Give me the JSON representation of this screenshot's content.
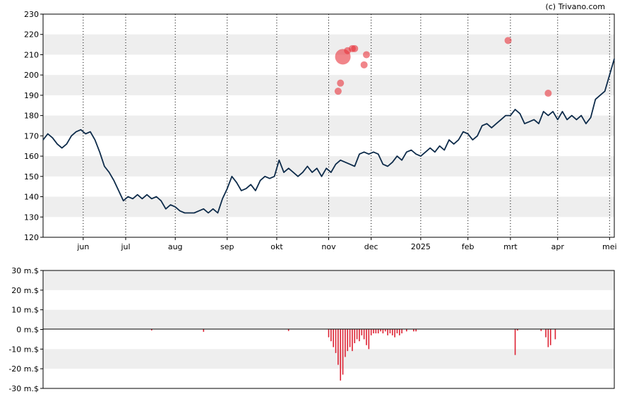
{
  "copyright": "(c) Trivano.com",
  "colors": {
    "line": "#0d2b4a",
    "band": "#eeeeee",
    "marker": "#e8333c",
    "volume": "#dd2233",
    "axis": "#000000"
  },
  "chart_data": [
    {
      "type": "line",
      "title": "",
      "xlabel": "",
      "ylabel": "",
      "ylim": [
        120,
        230
      ],
      "yticks": [
        "120",
        "130",
        "140",
        "150",
        "160",
        "170",
        "180",
        "190",
        "200",
        "210",
        "220",
        "230"
      ],
      "grid": "alternating horizontal bands, dotted vertical lines at month ticks",
      "x_ticks": [
        "jun",
        "jul",
        "aug",
        "sep",
        "okt",
        "nov",
        "dec",
        "2025",
        "feb",
        "mrt",
        "apr",
        "mei"
      ],
      "x_tick_index": [
        17,
        35,
        56,
        78,
        99,
        121,
        139,
        160,
        180,
        198,
        218,
        240
      ],
      "x_count": 243,
      "series": [
        {
          "kp": [
            [
              0,
              168
            ],
            [
              2,
              171
            ],
            [
              4,
              169
            ],
            [
              6,
              166
            ],
            [
              8,
              164
            ],
            [
              10,
              166
            ],
            [
              12,
              170
            ],
            [
              14,
              172
            ],
            [
              16,
              173
            ],
            [
              18,
              171
            ],
            [
              20,
              172
            ],
            [
              22,
              168
            ],
            [
              24,
              162
            ],
            [
              26,
              155
            ],
            [
              28,
              152
            ],
            [
              30,
              148
            ],
            [
              32,
              143
            ],
            [
              34,
              138
            ],
            [
              36,
              140
            ],
            [
              38,
              139
            ],
            [
              40,
              141
            ],
            [
              42,
              139
            ],
            [
              44,
              141
            ],
            [
              46,
              139
            ],
            [
              48,
              140
            ],
            [
              50,
              138
            ],
            [
              52,
              134
            ],
            [
              54,
              136
            ],
            [
              56,
              135
            ],
            [
              58,
              133
            ],
            [
              60,
              132
            ],
            [
              62,
              132
            ],
            [
              64,
              132
            ],
            [
              66,
              133
            ],
            [
              68,
              134
            ],
            [
              70,
              132
            ],
            [
              72,
              134
            ],
            [
              74,
              132
            ],
            [
              76,
              139
            ],
            [
              78,
              144
            ],
            [
              80,
              150
            ],
            [
              82,
              147
            ],
            [
              84,
              143
            ],
            [
              86,
              144
            ],
            [
              88,
              146
            ],
            [
              90,
              143
            ],
            [
              92,
              148
            ],
            [
              94,
              150
            ],
            [
              96,
              149
            ],
            [
              98,
              150
            ],
            [
              100,
              158
            ],
            [
              102,
              152
            ],
            [
              104,
              154
            ],
            [
              106,
              152
            ],
            [
              108,
              150
            ],
            [
              110,
              152
            ],
            [
              112,
              155
            ],
            [
              114,
              152
            ],
            [
              116,
              154
            ],
            [
              118,
              150
            ],
            [
              120,
              154
            ],
            [
              122,
              152
            ],
            [
              124,
              156
            ],
            [
              126,
              158
            ],
            [
              128,
              157
            ],
            [
              130,
              156
            ],
            [
              132,
              155
            ],
            [
              134,
              161
            ],
            [
              136,
              162
            ],
            [
              138,
              161
            ],
            [
              140,
              162
            ],
            [
              142,
              161
            ],
            [
              144,
              156
            ],
            [
              146,
              155
            ],
            [
              148,
              157
            ],
            [
              150,
              160
            ],
            [
              152,
              158
            ],
            [
              154,
              162
            ],
            [
              156,
              163
            ],
            [
              158,
              161
            ],
            [
              160,
              160
            ],
            [
              162,
              162
            ],
            [
              164,
              164
            ],
            [
              166,
              162
            ],
            [
              168,
              165
            ],
            [
              170,
              163
            ],
            [
              172,
              168
            ],
            [
              174,
              166
            ],
            [
              176,
              168
            ],
            [
              178,
              172
            ],
            [
              180,
              171
            ],
            [
              182,
              168
            ],
            [
              184,
              170
            ],
            [
              186,
              175
            ],
            [
              188,
              176
            ],
            [
              190,
              174
            ],
            [
              192,
              176
            ],
            [
              194,
              178
            ],
            [
              196,
              180
            ],
            [
              198,
              180
            ],
            [
              200,
              183
            ],
            [
              202,
              181
            ],
            [
              204,
              176
            ],
            [
              206,
              177
            ],
            [
              208,
              178
            ],
            [
              210,
              176
            ],
            [
              212,
              182
            ],
            [
              214,
              180
            ],
            [
              216,
              182
            ],
            [
              218,
              178
            ],
            [
              220,
              182
            ],
            [
              222,
              178
            ],
            [
              224,
              180
            ],
            [
              226,
              178
            ],
            [
              228,
              180
            ],
            [
              230,
              176
            ],
            [
              232,
              179
            ],
            [
              234,
              188
            ],
            [
              236,
              190
            ],
            [
              238,
              192
            ],
            [
              240,
              200
            ],
            [
              242,
              208
            ]
          ],
          "kp_unit_note": ""
        }
      ],
      "markers": [
        {
          "x": 125,
          "y": 192
        },
        {
          "x": 126,
          "y": 196
        },
        {
          "x": 127,
          "y": 209
        },
        {
          "x": 129,
          "y": 212
        },
        {
          "x": 131,
          "y": 213
        },
        {
          "x": 132,
          "y": 213
        },
        {
          "x": 136,
          "y": 205
        },
        {
          "x": 137,
          "y": 210
        },
        {
          "x": 197,
          "y": 217
        },
        {
          "x": 214,
          "y": 191
        }
      ]
    },
    {
      "type": "bar",
      "title": "",
      "xlabel": "",
      "ylabel": "",
      "ylim": [
        -30,
        30
      ],
      "yticks": [
        "-30 m.$",
        "-20 m.$",
        "-10 m.$",
        "0 m.$",
        "10 m.$",
        "20 m.$",
        "30 m.$"
      ],
      "grid": "alternating horizontal bands",
      "series": [
        {
          "bars": [
            [
              46,
              -0.5
            ],
            [
              68,
              -1.2
            ],
            [
              104,
              -0.8
            ],
            [
              121,
              -4
            ],
            [
              122,
              -6
            ],
            [
              123,
              -9
            ],
            [
              124,
              -12
            ],
            [
              125,
              -18
            ],
            [
              126,
              -26
            ],
            [
              127,
              -23
            ],
            [
              128,
              -14
            ],
            [
              129,
              -11
            ],
            [
              130,
              -9
            ],
            [
              131,
              -11
            ],
            [
              132,
              -7
            ],
            [
              133,
              -5
            ],
            [
              134,
              -6
            ],
            [
              135,
              -3
            ],
            [
              136,
              -5
            ],
            [
              137,
              -8
            ],
            [
              138,
              -10
            ],
            [
              139,
              -3
            ],
            [
              140,
              -2
            ],
            [
              141,
              -2
            ],
            [
              142,
              -2
            ],
            [
              143,
              -1
            ],
            [
              144,
              -2
            ],
            [
              145,
              -1
            ],
            [
              146,
              -3
            ],
            [
              147,
              -2
            ],
            [
              148,
              -3
            ],
            [
              149,
              -4
            ],
            [
              150,
              -2
            ],
            [
              151,
              -3
            ],
            [
              152,
              -2
            ],
            [
              154,
              -1
            ],
            [
              157,
              -1
            ],
            [
              158,
              -1
            ],
            [
              200,
              -13
            ],
            [
              201,
              -0.6
            ],
            [
              211,
              -0.8
            ],
            [
              213,
              -4
            ],
            [
              214,
              -9
            ],
            [
              215,
              -8
            ],
            [
              217,
              -5
            ]
          ]
        }
      ]
    }
  ]
}
